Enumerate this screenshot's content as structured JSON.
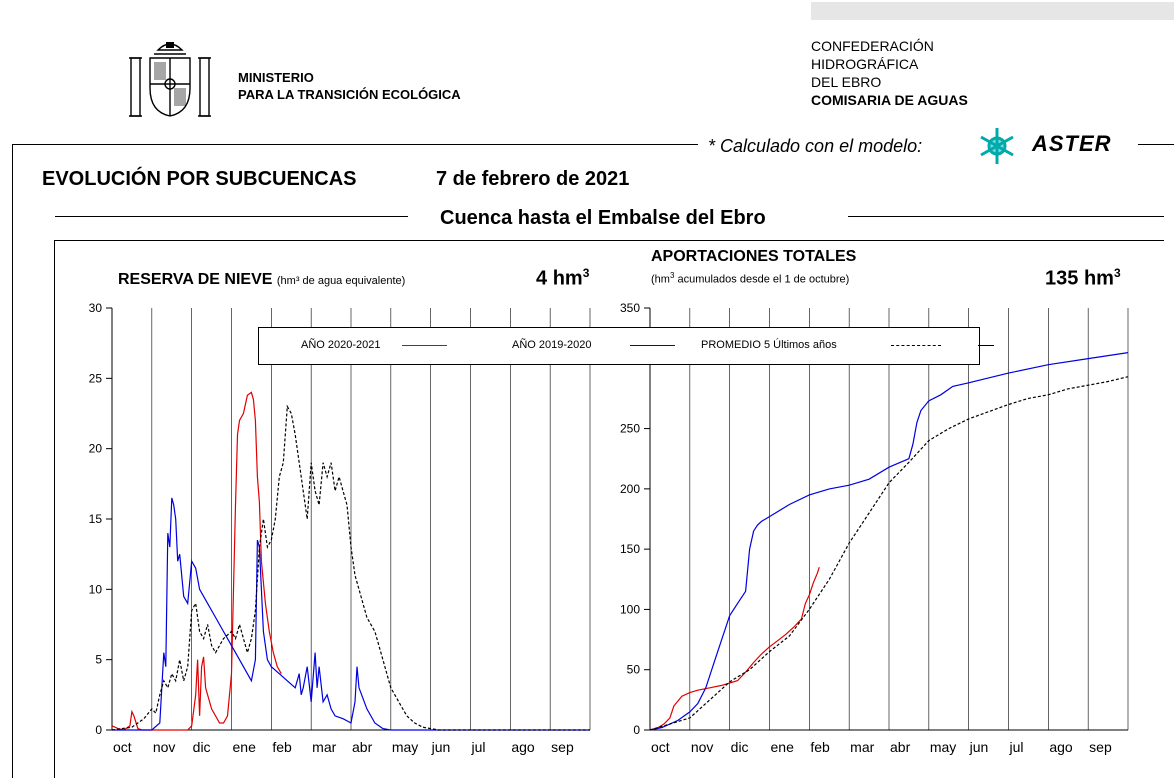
{
  "header": {
    "ministry_line1": "MINISTERIO",
    "ministry_line2": "PARA LA  TRANSICIÓN ECOLÓGICA",
    "conf_line1": "CONFEDERACIÓN",
    "conf_line2": "HIDROGRÁFICA",
    "conf_line3": "DEL EBRO",
    "conf_line4": "COMISARIA DE AGUAS",
    "model_text": "* Calculado con el modelo:",
    "model_name": "ASTER"
  },
  "report": {
    "title": "EVOLUCIÓN POR SUBCUENCAS",
    "date": "7 de febrero de 2021",
    "basin": "Cuenca hasta el Embalse del Ebro"
  },
  "legend": {
    "items": [
      {
        "label": "AÑO 2020-2021",
        "color": "#e00000",
        "dash": false
      },
      {
        "label": "AÑO 2019-2020",
        "color": "#0000e0",
        "dash": false
      },
      {
        "label": "PROMEDIO 5 Últimos años",
        "color": "#000000",
        "dash": true
      }
    ]
  },
  "colors": {
    "current": "#e00000",
    "previous": "#0000e0",
    "average": "#000000"
  },
  "chart_data": [
    {
      "type": "line",
      "title": "RESERVA DE NIEVE",
      "subtitle": "(hm³ de agua equivalente)",
      "total_value": "4",
      "total_unit": "hm",
      "total_exp": "3",
      "x_range": [
        0,
        12
      ],
      "ylim": [
        0,
        30
      ],
      "yticks": [
        "0",
        "5",
        "10",
        "15",
        "20",
        "25",
        "30"
      ],
      "months": [
        "oct",
        "nov",
        "dic",
        "ene",
        "feb",
        "mar",
        "abr",
        "may",
        "jun",
        "jul",
        "ago",
        "sep"
      ],
      "grid": true,
      "series": [
        {
          "name": "AÑO 2020-2021",
          "key": "current",
          "x": [
            0,
            0.15,
            0.3,
            0.45,
            0.5,
            0.55,
            0.65,
            0.75,
            0.85,
            1.0,
            1.5,
            1.9,
            2.0,
            2.1,
            2.15,
            2.2,
            2.25,
            2.3,
            2.35,
            2.5,
            2.7,
            2.8,
            2.9,
            3.0,
            3.05,
            3.1,
            3.15,
            3.2,
            3.3,
            3.4,
            3.5,
            3.55,
            3.6,
            3.65,
            3.7,
            3.75,
            3.85,
            3.95,
            4.05,
            4.15,
            4.25
          ],
          "y": [
            0.3,
            0.1,
            0,
            0.3,
            1.3,
            1.0,
            0.1,
            0,
            0,
            0,
            0,
            0,
            0.3,
            2.5,
            5.0,
            1.0,
            4.5,
            5.2,
            3.0,
            1.5,
            0.5,
            0.5,
            1.0,
            4.0,
            10,
            16,
            21,
            22,
            22.5,
            23.8,
            24,
            23.5,
            22,
            18,
            16.2,
            12,
            9,
            7,
            5.5,
            4.5,
            4.0
          ]
        },
        {
          "name": "AÑO 2019-2020",
          "key": "previous",
          "x": [
            0,
            0.5,
            1.0,
            1.2,
            1.3,
            1.35,
            1.4,
            1.45,
            1.5,
            1.55,
            1.6,
            1.65,
            1.7,
            1.8,
            1.9,
            2.0,
            2.1,
            2.2,
            2.4,
            2.6,
            2.8,
            3.0,
            3.2,
            3.4,
            3.5,
            3.6,
            3.65,
            3.7,
            3.8,
            3.9,
            4.0,
            4.2,
            4.4,
            4.6,
            4.7,
            4.75,
            4.8,
            4.9,
            5.0,
            5.1,
            5.15,
            5.2,
            5.3,
            5.4,
            5.5,
            5.6,
            5.8,
            6.0,
            6.1,
            6.15,
            6.2,
            6.4,
            6.6,
            6.8,
            7.0,
            8.0,
            9.0,
            10.0,
            11.0,
            12.0
          ],
          "y": [
            0,
            0,
            0,
            0.5,
            5.5,
            4.5,
            14,
            13,
            16.5,
            16,
            15,
            12,
            12.5,
            9.5,
            9,
            12,
            11.5,
            10,
            9,
            8,
            7,
            6,
            5,
            4,
            3.5,
            5.0,
            13.5,
            13,
            7,
            5,
            4.5,
            4,
            3.5,
            3,
            4.0,
            2.5,
            3.0,
            4.5,
            2.0,
            5.5,
            3.0,
            4.5,
            2.0,
            2.5,
            1.5,
            1.0,
            0.8,
            0.5,
            2.0,
            4.5,
            3.0,
            1.5,
            0.5,
            0.1,
            0,
            0,
            0,
            0,
            0,
            0
          ]
        },
        {
          "name": "PROMEDIO 5 Últimos años",
          "key": "average",
          "x": [
            0,
            0.5,
            0.8,
            1.0,
            1.1,
            1.2,
            1.3,
            1.4,
            1.5,
            1.6,
            1.7,
            1.8,
            1.9,
            2.0,
            2.1,
            2.2,
            2.3,
            2.4,
            2.5,
            2.6,
            2.8,
            3.0,
            3.1,
            3.2,
            3.4,
            3.5,
            3.6,
            3.7,
            3.8,
            3.9,
            4.0,
            4.1,
            4.2,
            4.3,
            4.4,
            4.5,
            4.6,
            4.7,
            4.8,
            4.9,
            5.0,
            5.1,
            5.2,
            5.3,
            5.4,
            5.5,
            5.6,
            5.7,
            5.8,
            5.9,
            6.0,
            6.1,
            6.2,
            6.4,
            6.6,
            6.8,
            7.0,
            7.2,
            7.4,
            7.6,
            7.8,
            8.0,
            8.2,
            8.5,
            9.0,
            10.0,
            11.0,
            12.0
          ],
          "y": [
            0,
            0.2,
            0.8,
            1.5,
            1.2,
            2.5,
            3.5,
            3.0,
            4.0,
            3.5,
            5.0,
            3.5,
            4.5,
            8.5,
            9.0,
            7.0,
            6.5,
            7.5,
            6.0,
            5.5,
            6.5,
            7.0,
            6.5,
            7.5,
            5.5,
            6.5,
            8.5,
            13,
            15,
            13,
            13.5,
            15,
            18,
            19,
            23,
            22.5,
            21,
            19,
            17,
            15,
            19,
            17,
            16,
            19,
            18,
            19,
            17,
            18,
            17,
            16,
            13,
            11,
            10,
            8,
            7,
            5,
            3,
            2,
            1,
            0.5,
            0.2,
            0.1,
            0,
            0,
            0,
            0,
            0,
            0
          ]
        }
      ]
    },
    {
      "type": "line",
      "title": "APORTACIONES TOTALES",
      "subtitle": "acumulados desde el 1 de octubre)",
      "total_value": "135",
      "total_unit": "hm",
      "total_exp": "3",
      "x_range": [
        0,
        12
      ],
      "ylim": [
        0,
        350
      ],
      "yticks": [
        "0",
        "50",
        "100",
        "150",
        "200",
        "250",
        "350"
      ],
      "months": [
        "oct",
        "nov",
        "dic",
        "ene",
        "feb",
        "mar",
        "abr",
        "may",
        "jun",
        "jul",
        "ago",
        "sep"
      ],
      "grid": true,
      "series": [
        {
          "name": "AÑO 2020-2021",
          "key": "current",
          "x": [
            0,
            0.2,
            0.35,
            0.5,
            0.6,
            0.8,
            1.0,
            1.2,
            1.5,
            1.8,
            2.0,
            2.2,
            2.4,
            2.6,
            2.8,
            3.0,
            3.2,
            3.4,
            3.6,
            3.8,
            3.9,
            4.0,
            4.1,
            4.2,
            4.25
          ],
          "y": [
            0,
            2,
            5,
            10,
            20,
            28,
            31,
            33,
            35,
            37,
            39,
            41,
            48,
            56,
            63,
            69,
            74,
            79,
            85,
            92,
            105,
            112,
            122,
            130,
            135
          ]
        },
        {
          "name": "AÑO 2019-2020",
          "key": "previous",
          "x": [
            0,
            0.3,
            0.5,
            0.7,
            1.0,
            1.2,
            1.4,
            1.6,
            1.8,
            2.0,
            2.2,
            2.4,
            2.5,
            2.6,
            2.7,
            2.8,
            3.0,
            3.5,
            4.0,
            4.5,
            5.0,
            5.5,
            6.0,
            6.5,
            6.6,
            6.7,
            6.8,
            7.0,
            7.3,
            7.6,
            8.0,
            8.5,
            9.0,
            10.0,
            11.0,
            12.0
          ],
          "y": [
            0,
            2,
            5,
            8,
            15,
            22,
            35,
            55,
            75,
            95,
            105,
            115,
            150,
            165,
            170,
            173,
            177,
            187,
            195,
            200,
            203,
            208,
            218,
            225,
            237,
            255,
            265,
            273,
            278,
            285,
            288,
            292,
            296,
            303,
            308,
            313
          ]
        },
        {
          "name": "PROMEDIO 5 Últimos años",
          "key": "average",
          "x": [
            0,
            0.5,
            1.0,
            1.5,
            2.0,
            2.5,
            3.0,
            3.5,
            4.0,
            4.5,
            5.0,
            5.5,
            6.0,
            6.5,
            7.0,
            7.5,
            8.0,
            8.5,
            9.0,
            9.5,
            10.0,
            10.5,
            11.0,
            11.5,
            12.0
          ],
          "y": [
            0,
            5,
            10,
            25,
            40,
            50,
            65,
            78,
            100,
            125,
            155,
            180,
            205,
            222,
            240,
            250,
            258,
            264,
            270,
            275,
            278,
            283,
            286,
            289,
            293
          ]
        }
      ]
    }
  ]
}
